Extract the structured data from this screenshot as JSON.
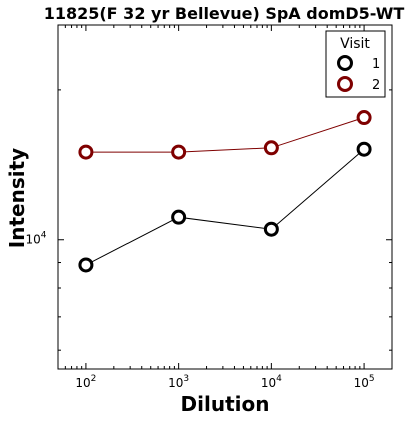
{
  "chart_data": {
    "type": "line",
    "title": "11825(F 32 yr Bellevue) SpA domD5-WT",
    "xlabel": "Dilution",
    "ylabel": "Intensity",
    "x_scale": "log",
    "y_scale": "log",
    "x": [
      100,
      1000,
      10000,
      100000
    ],
    "xlim": [
      50,
      200000
    ],
    "ylim": [
      5500,
      27000
    ],
    "x_ticks": [
      {
        "value": 100,
        "base": "10",
        "exp": "2"
      },
      {
        "value": 1000,
        "base": "10",
        "exp": "3"
      },
      {
        "value": 10000,
        "base": "10",
        "exp": "4"
      },
      {
        "value": 100000,
        "base": "10",
        "exp": "5"
      }
    ],
    "y_ticks": [
      {
        "value": 10000,
        "base": "10",
        "exp": "4"
      }
    ],
    "legend": {
      "title": "Visit",
      "position": "top-right"
    },
    "grid": false,
    "series": [
      {
        "name": "1",
        "color": "#000000",
        "values": [
          8900,
          11100,
          10500,
          15200
        ]
      },
      {
        "name": "2",
        "color": "#7f0000",
        "values": [
          15000,
          15000,
          15300,
          17600
        ]
      }
    ]
  }
}
